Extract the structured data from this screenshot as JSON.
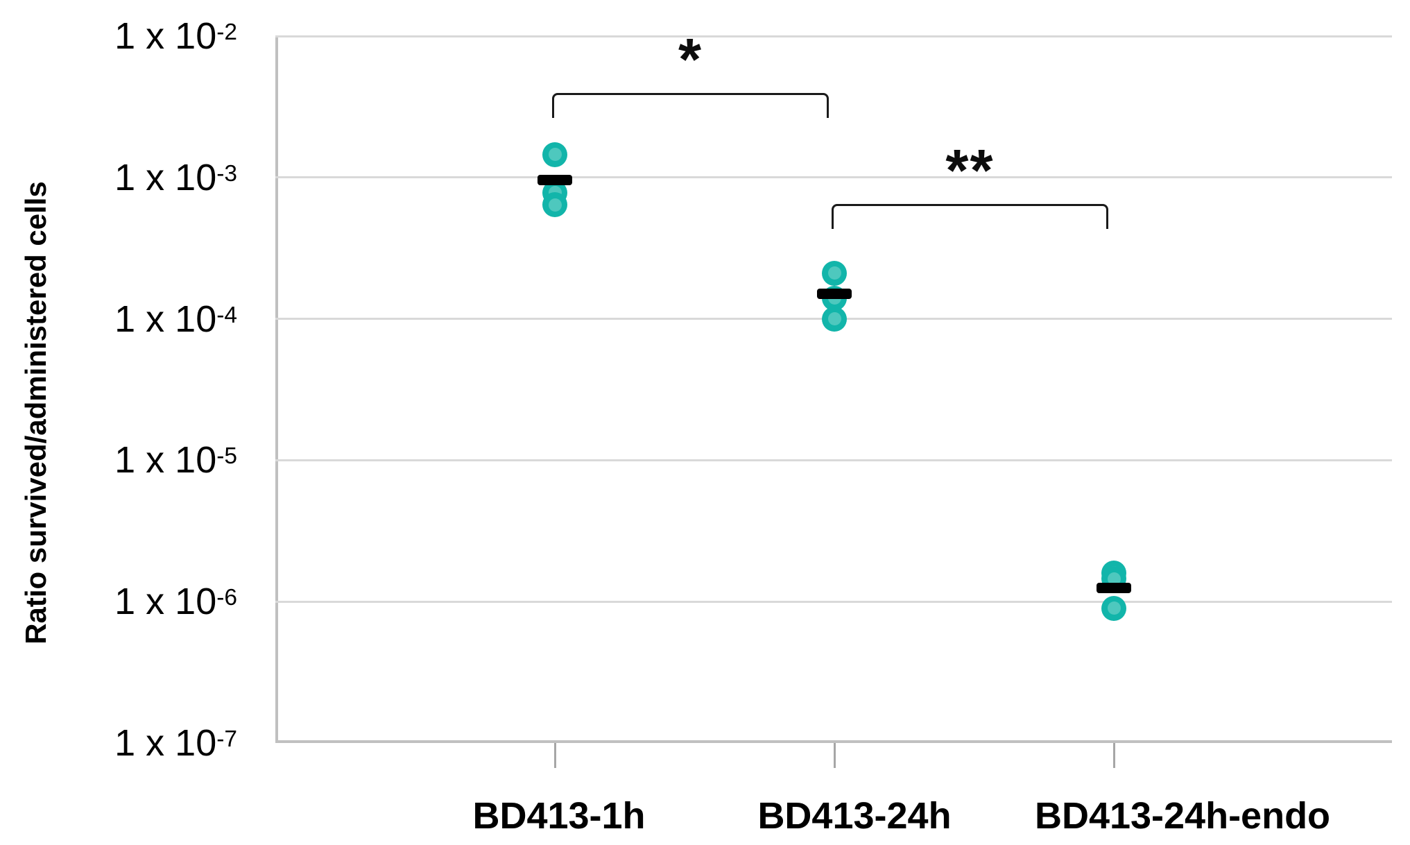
{
  "chart_data": {
    "type": "scatter",
    "title": "",
    "xlabel": "",
    "ylabel": "Ratio survived/administered cells",
    "y_scale": "log10",
    "y_range_exponents": [
      -7,
      -2
    ],
    "y_tick_exponents": [
      -2,
      -3,
      -4,
      -5,
      -6,
      -7
    ],
    "y_tick_labels": [
      "1 x 10-2",
      "1 x 10-3",
      "1 x 10-4",
      "1 x 10-5",
      "1 x 10-6",
      "1 x 10-7"
    ],
    "grid": "horizontal",
    "legend": "none",
    "categories": [
      "BD413-1h",
      "BD413-24h",
      "BD413-24h-endo"
    ],
    "series": [
      {
        "category": "BD413-1h",
        "points": [
          0.00145,
          0.00078,
          0.00064
        ],
        "mean_bar": 0.00096
      },
      {
        "category": "BD413-24h",
        "points": [
          0.00021,
          0.00014,
          0.0001
        ],
        "mean_bar": 0.00015
      },
      {
        "category": "BD413-24h-endo",
        "points": [
          1.6e-06,
          1.45e-06,
          9e-07
        ],
        "mean_bar": 1.25e-06
      }
    ],
    "annotations": [
      {
        "label": "*",
        "from": "BD413-1h",
        "to": "BD413-24h"
      },
      {
        "label": "**",
        "from": "BD413-24h",
        "to": "BD413-24h-endo"
      }
    ],
    "colors": {
      "marker_fill": "#12b5aa",
      "marker_inner": "#4ec8be",
      "mean_bar": "#000000",
      "gridline": "#d9d9d9",
      "axis_line": "#c0c0c0",
      "tick": "#a6a6a6",
      "text": "#000000",
      "background": "#ffffff"
    }
  }
}
